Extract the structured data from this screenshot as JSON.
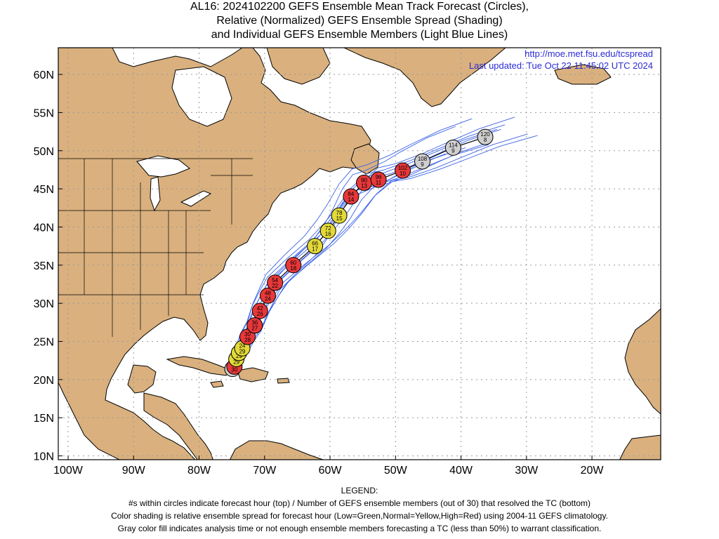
{
  "title": {
    "line1": "AL16: 2024102200 GEFS Ensemble Mean Track Forecast (Circles),",
    "line2": "Relative (Normalized) GEFS Ensemble Spread (Shading)",
    "line3": "and Individual GEFS Ensemble Members (Light Blue Lines)"
  },
  "map": {
    "url": "http://moe.met.fsu.edu/tcspread",
    "updated": "Last updated: Tue Oct 22 11:45:02 UTC 2024",
    "lon_range": [
      -101.5,
      -9.5
    ],
    "lat_range": [
      9.5,
      63.5
    ],
    "lon_ticks": [
      {
        "lon": -100,
        "label": "100W"
      },
      {
        "lon": -90,
        "label": "90W"
      },
      {
        "lon": -80,
        "label": "80W"
      },
      {
        "lon": -70,
        "label": "70W"
      },
      {
        "lon": -60,
        "label": "60W"
      },
      {
        "lon": -50,
        "label": "50W"
      },
      {
        "lon": -40,
        "label": "40W"
      },
      {
        "lon": -30,
        "label": "30W"
      },
      {
        "lon": -20,
        "label": "20W"
      }
    ],
    "lat_ticks": [
      {
        "lat": 10,
        "label": "10N"
      },
      {
        "lat": 15,
        "label": "15N"
      },
      {
        "lat": 20,
        "label": "20N"
      },
      {
        "lat": 25,
        "label": "25N"
      },
      {
        "lat": 30,
        "label": "30N"
      },
      {
        "lat": 35,
        "label": "35N"
      },
      {
        "lat": 40,
        "label": "40N"
      },
      {
        "lat": 45,
        "label": "45N"
      },
      {
        "lat": 50,
        "label": "50N"
      },
      {
        "lat": 55,
        "label": "55N"
      },
      {
        "lat": 60,
        "label": "60N"
      }
    ],
    "colors": {
      "land": "#d9b07e",
      "ocean": "#ffffff",
      "high": "#e8383a",
      "normal": "#e3da3a",
      "gray": "#cfcfcf",
      "member_line": "#3b63e6",
      "grid": "#9a9a9a"
    }
  },
  "track": [
    {
      "hour": "0",
      "members": "30",
      "lon": -74.9,
      "lat": 21.4,
      "spread": "gray"
    },
    {
      "hour": "6",
      "members": "30",
      "lon": -74.6,
      "lat": 21.7,
      "spread": "high"
    },
    {
      "hour": "12",
      "members": "29",
      "lon": -74.3,
      "lat": 22.7,
      "spread": "normal"
    },
    {
      "hour": "18",
      "members": "29",
      "lon": -73.9,
      "lat": 23.5,
      "spread": "normal"
    },
    {
      "hour": "24",
      "members": "29",
      "lon": -73.4,
      "lat": 24.1,
      "spread": "normal"
    },
    {
      "hour": "30",
      "members": "28",
      "lon": -72.6,
      "lat": 25.6,
      "spread": "high"
    },
    {
      "hour": "36",
      "members": "27",
      "lon": -71.5,
      "lat": 27.1,
      "spread": "high"
    },
    {
      "hour": "42",
      "members": "26",
      "lon": -70.7,
      "lat": 29.0,
      "spread": "high"
    },
    {
      "hour": "48",
      "members": "24",
      "lon": -69.5,
      "lat": 31.0,
      "spread": "high"
    },
    {
      "hour": "54",
      "members": "22",
      "lon": -68.4,
      "lat": 32.7,
      "spread": "high"
    },
    {
      "hour": "60",
      "members": "18",
      "lon": -65.6,
      "lat": 35.0,
      "spread": "high"
    },
    {
      "hour": "66",
      "members": "17",
      "lon": -62.3,
      "lat": 37.5,
      "spread": "normal"
    },
    {
      "hour": "72",
      "members": "16",
      "lon": -60.3,
      "lat": 39.5,
      "spread": "normal"
    },
    {
      "hour": "78",
      "members": "15",
      "lon": -58.6,
      "lat": 41.5,
      "spread": "normal"
    },
    {
      "hour": "84",
      "members": "14",
      "lon": -56.8,
      "lat": 44.0,
      "spread": "high"
    },
    {
      "hour": "90",
      "members": "13",
      "lon": -54.8,
      "lat": 45.8,
      "spread": "high"
    },
    {
      "hour": "96",
      "members": "11",
      "lon": -52.6,
      "lat": 46.2,
      "spread": "high"
    },
    {
      "hour": "102",
      "members": "10",
      "lon": -48.9,
      "lat": 47.4,
      "spread": "high"
    },
    {
      "hour": "108",
      "members": "9",
      "lon": -45.9,
      "lat": 48.6,
      "spread": "gray"
    },
    {
      "hour": "114",
      "members": "9",
      "lon": -41.2,
      "lat": 50.4,
      "spread": "gray"
    },
    {
      "hour": "120",
      "members": "8",
      "lon": -36.3,
      "lat": 51.8,
      "spread": "gray"
    }
  ],
  "legend": {
    "heading": "LEGEND:",
    "line1": "#s within circles indicate forecast hour (top) / Number of GEFS ensemble members (out of 30) that resolved the TC (bottom)",
    "line2": "Color shading is relative ensemble spread for forecast hour (Low=Green,Normal=Yellow,High=Red) using 2004-11 GEFS climatology.",
    "line3": "Gray color fill indicates analysis time or not enough ensemble members forecasting a TC (less than 50%) to warrant classification."
  }
}
